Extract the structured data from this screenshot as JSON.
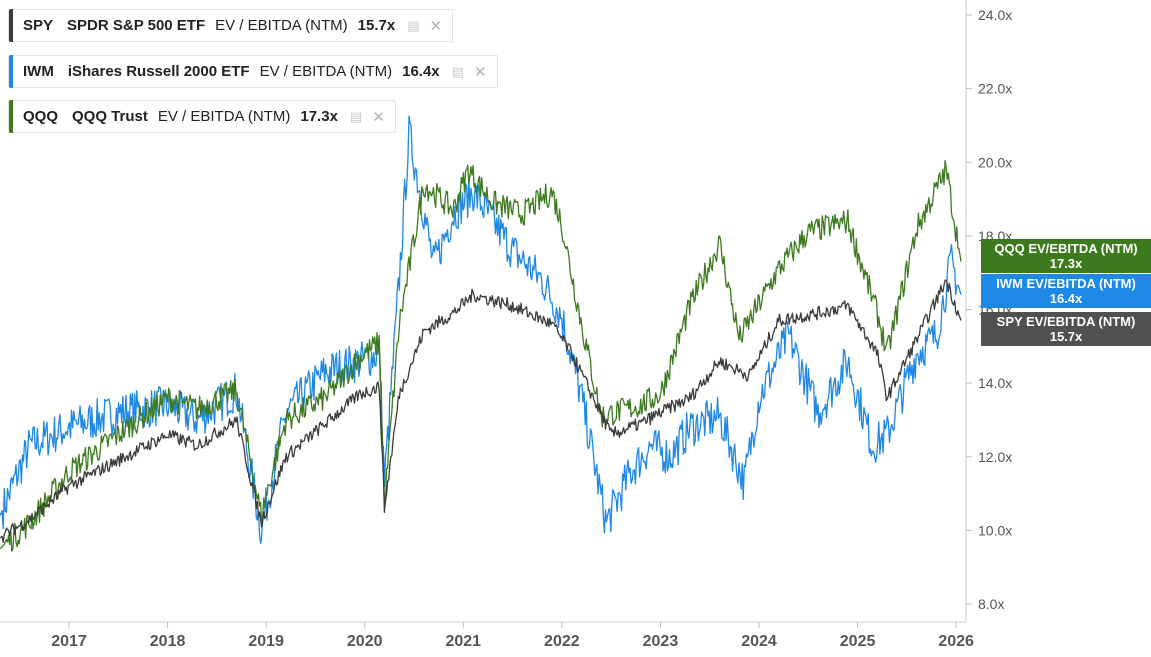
{
  "chart_data": {
    "type": "line",
    "title": "EV / EBITDA (NTM)",
    "x_ticks": [
      "2017",
      "2018",
      "2019",
      "2020",
      "2021",
      "2022",
      "2023",
      "2024",
      "2025",
      "2026"
    ],
    "y_ticks": [
      "8.0x",
      "10.0x",
      "12.0x",
      "14.0x",
      "16.0x",
      "18.0x",
      "20.0x",
      "22.0x",
      "24.0x"
    ],
    "ylim": [
      8,
      24
    ],
    "xlim": [
      2016.3,
      2026.1
    ],
    "series": [
      {
        "ticker": "SPY",
        "name": "SPDR S&P 500 ETF",
        "metric": "EV / EBITDA (NTM)",
        "current_label": "15.7x",
        "tag_label": "SPY EV/EBITDA (NTM)",
        "current": 15.7,
        "color": "#3b3b3b",
        "x": [
          2016.3,
          2016.6,
          2017.0,
          2017.5,
          2018.0,
          2018.3,
          2018.7,
          2018.95,
          2019.2,
          2019.6,
          2019.95,
          2020.15,
          2020.2,
          2020.35,
          2020.6,
          2020.9,
          2021.1,
          2021.5,
          2021.9,
          2022.1,
          2022.5,
          2022.8,
          2023.0,
          2023.3,
          2023.6,
          2023.9,
          2024.2,
          2024.6,
          2024.9,
          2025.2,
          2025.3,
          2025.6,
          2025.9,
          2026.05
        ],
        "values": [
          9.8,
          10.3,
          11.2,
          11.9,
          12.6,
          12.3,
          13.0,
          10.2,
          12.0,
          12.9,
          13.7,
          13.9,
          10.6,
          13.7,
          15.4,
          15.9,
          16.4,
          16.1,
          15.6,
          14.8,
          12.6,
          12.9,
          13.2,
          13.6,
          14.6,
          14.2,
          15.7,
          15.9,
          16.1,
          14.8,
          13.6,
          15.2,
          16.8,
          15.7
        ]
      },
      {
        "ticker": "IWM",
        "name": "iShares Russell 2000 ETF",
        "metric": "EV / EBITDA (NTM)",
        "current_label": "16.4x",
        "tag_label": "IWM EV/EBITDA (NTM)",
        "current": 16.4,
        "color": "#1e88e5",
        "x": [
          2016.3,
          2016.6,
          2017.0,
          2017.5,
          2018.0,
          2018.3,
          2018.7,
          2018.95,
          2019.2,
          2019.6,
          2019.95,
          2020.15,
          2020.2,
          2020.35,
          2020.45,
          2020.7,
          2020.9,
          2021.1,
          2021.3,
          2021.5,
          2021.8,
          2022.0,
          2022.2,
          2022.45,
          2022.7,
          2022.9,
          2023.1,
          2023.3,
          2023.6,
          2023.85,
          2024.0,
          2024.3,
          2024.6,
          2024.9,
          2025.15,
          2025.3,
          2025.6,
          2025.8,
          2025.95,
          2026.05
        ],
        "values": [
          10.4,
          12.3,
          12.8,
          13.2,
          13.4,
          13.0,
          13.8,
          10.0,
          13.2,
          14.3,
          14.6,
          14.8,
          11.3,
          16.8,
          20.8,
          17.2,
          18.6,
          19.2,
          18.4,
          17.6,
          16.8,
          15.8,
          13.6,
          10.2,
          11.6,
          12.3,
          12.0,
          12.8,
          13.1,
          11.3,
          13.6,
          15.3,
          13.2,
          14.6,
          12.3,
          12.6,
          14.8,
          15.3,
          17.3,
          16.4
        ]
      },
      {
        "ticker": "QQQ",
        "name": "QQQ Trust",
        "metric": "EV / EBITDA (NTM)",
        "current_label": "17.3x",
        "tag_label": "QQQ EV/EBITDA (NTM)",
        "current": 17.3,
        "color": "#3d7a1f",
        "x": [
          2016.3,
          2016.6,
          2017.0,
          2017.5,
          2018.0,
          2018.3,
          2018.7,
          2018.95,
          2019.2,
          2019.6,
          2019.95,
          2020.15,
          2020.2,
          2020.35,
          2020.6,
          2020.9,
          2021.05,
          2021.3,
          2021.6,
          2021.9,
          2022.0,
          2022.2,
          2022.4,
          2022.8,
          2023.0,
          2023.3,
          2023.6,
          2023.8,
          2024.2,
          2024.5,
          2024.9,
          2025.2,
          2025.3,
          2025.6,
          2025.9,
          2026.05
        ],
        "values": [
          9.5,
          10.2,
          11.6,
          12.6,
          13.6,
          13.3,
          13.8,
          10.4,
          13.0,
          13.6,
          14.7,
          15.1,
          10.7,
          15.6,
          19.4,
          18.7,
          19.8,
          18.9,
          18.6,
          19.2,
          18.3,
          15.6,
          13.1,
          13.4,
          13.7,
          16.1,
          17.8,
          15.2,
          17.1,
          18.1,
          18.4,
          15.9,
          14.8,
          18.2,
          19.8,
          17.3
        ]
      }
    ]
  }
}
